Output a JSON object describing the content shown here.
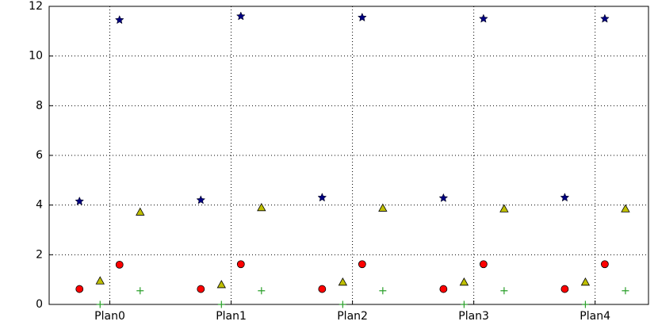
{
  "chart_data": {
    "type": "scatter",
    "xlim": [
      -0.5,
      4.44
    ],
    "xticks": [
      {
        "value": 0,
        "label": "Plan0"
      },
      {
        "value": 1,
        "label": "Plan1"
      },
      {
        "value": 2,
        "label": "Plan2"
      },
      {
        "value": 3,
        "label": "Plan3"
      },
      {
        "value": 4,
        "label": "Plan4"
      }
    ],
    "ylim": [
      0,
      12
    ],
    "yticks": [
      0,
      2,
      4,
      6,
      8,
      10,
      12
    ],
    "grid": true,
    "series": [
      {
        "marker": "star",
        "color": "#000080",
        "x": [
          -0.25,
          0.08,
          0.75,
          1.08,
          1.75,
          2.08,
          2.75,
          3.08,
          3.75,
          4.08
        ],
        "values": [
          4.15,
          11.45,
          4.2,
          11.6,
          4.3,
          11.55,
          4.28,
          11.5,
          4.3,
          11.5
        ]
      },
      {
        "marker": "circle",
        "color": "#ff0000",
        "x": [
          -0.25,
          0.08,
          0.75,
          1.08,
          1.75,
          2.08,
          2.75,
          3.08,
          3.75,
          4.08
        ],
        "values": [
          0.62,
          1.6,
          0.62,
          1.62,
          0.62,
          1.62,
          0.62,
          1.62,
          0.62,
          1.62
        ]
      },
      {
        "marker": "triangle",
        "color": "#bfbf00",
        "x": [
          -0.08,
          0.25,
          0.92,
          1.25,
          1.92,
          2.25,
          2.92,
          3.25,
          3.92,
          4.25
        ],
        "values": [
          0.95,
          3.72,
          0.8,
          3.9,
          0.9,
          3.88,
          0.9,
          3.85,
          0.9,
          3.85
        ]
      },
      {
        "marker": "plus",
        "color": "#2ca02c",
        "x": [
          -0.08,
          0.25,
          0.92,
          1.25,
          1.92,
          2.25,
          2.92,
          3.25,
          3.92,
          4.25
        ],
        "values": [
          0,
          0.55,
          0,
          0.55,
          0,
          0.55,
          0,
          0.55,
          0,
          0.55
        ]
      }
    ]
  }
}
